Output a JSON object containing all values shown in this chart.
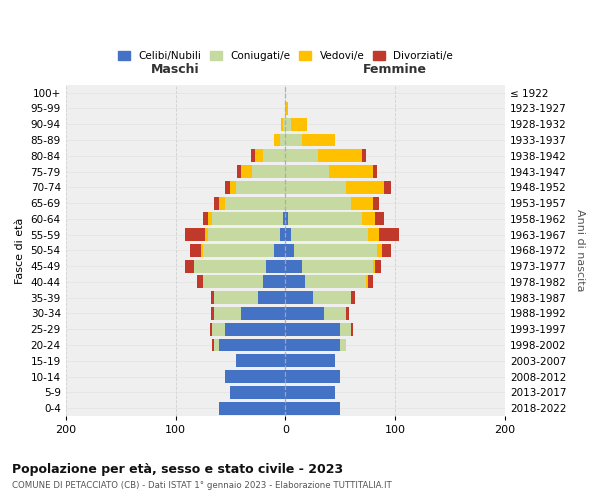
{
  "age_groups": [
    "0-4",
    "5-9",
    "10-14",
    "15-19",
    "20-24",
    "25-29",
    "30-34",
    "35-39",
    "40-44",
    "45-49",
    "50-54",
    "55-59",
    "60-64",
    "65-69",
    "70-74",
    "75-79",
    "80-84",
    "85-89",
    "90-94",
    "95-99",
    "100+"
  ],
  "birth_years": [
    "2018-2022",
    "2013-2017",
    "2008-2012",
    "2003-2007",
    "1998-2002",
    "1993-1997",
    "1988-1992",
    "1983-1987",
    "1978-1982",
    "1973-1977",
    "1968-1972",
    "1963-1967",
    "1958-1962",
    "1953-1957",
    "1948-1952",
    "1943-1947",
    "1938-1942",
    "1933-1937",
    "1928-1932",
    "1923-1927",
    "≤ 1922"
  ],
  "male": {
    "celibi": [
      60,
      50,
      55,
      45,
      60,
      55,
      40,
      25,
      20,
      18,
      10,
      5,
      2,
      0,
      0,
      0,
      0,
      0,
      0,
      0,
      0
    ],
    "coniugati": [
      0,
      0,
      0,
      0,
      5,
      12,
      25,
      40,
      55,
      65,
      65,
      65,
      65,
      55,
      45,
      30,
      20,
      5,
      2,
      0,
      0
    ],
    "vedovi": [
      0,
      0,
      0,
      0,
      0,
      0,
      0,
      0,
      0,
      0,
      2,
      3,
      3,
      5,
      5,
      10,
      8,
      5,
      2,
      0,
      0
    ],
    "divorziati": [
      0,
      0,
      0,
      0,
      2,
      2,
      3,
      3,
      5,
      8,
      10,
      18,
      5,
      5,
      5,
      4,
      3,
      0,
      0,
      0,
      0
    ]
  },
  "female": {
    "nubili": [
      50,
      45,
      50,
      45,
      50,
      50,
      35,
      25,
      18,
      15,
      8,
      5,
      2,
      0,
      0,
      0,
      0,
      0,
      0,
      0,
      0
    ],
    "coniugate": [
      0,
      0,
      0,
      0,
      5,
      10,
      20,
      35,
      55,
      65,
      75,
      70,
      68,
      60,
      55,
      40,
      30,
      15,
      5,
      0,
      0
    ],
    "vedove": [
      0,
      0,
      0,
      0,
      0,
      0,
      0,
      0,
      2,
      2,
      5,
      10,
      12,
      20,
      35,
      40,
      40,
      30,
      15,
      2,
      0
    ],
    "divorziate": [
      0,
      0,
      0,
      0,
      0,
      2,
      3,
      3,
      5,
      5,
      8,
      18,
      8,
      5,
      6,
      3,
      3,
      0,
      0,
      0,
      0
    ]
  },
  "colors": {
    "celibi": "#4472c4",
    "coniugati": "#c5d9a0",
    "vedovi": "#ffc000",
    "divorziati": "#c0392b"
  },
  "title": "Popolazione per età, sesso e stato civile - 2023",
  "subtitle": "COMUNE DI PETACCIATO (CB) - Dati ISTAT 1° gennaio 2023 - Elaborazione TUTTITALIA.IT",
  "xlabel_left": "Maschi",
  "xlabel_right": "Femmine",
  "ylabel_left": "Fasce di età",
  "ylabel_right": "Anni di nascita",
  "xlim": 200,
  "background_color": "#ffffff",
  "grid_color": "#cccccc",
  "ax_bg_color": "#efefef"
}
